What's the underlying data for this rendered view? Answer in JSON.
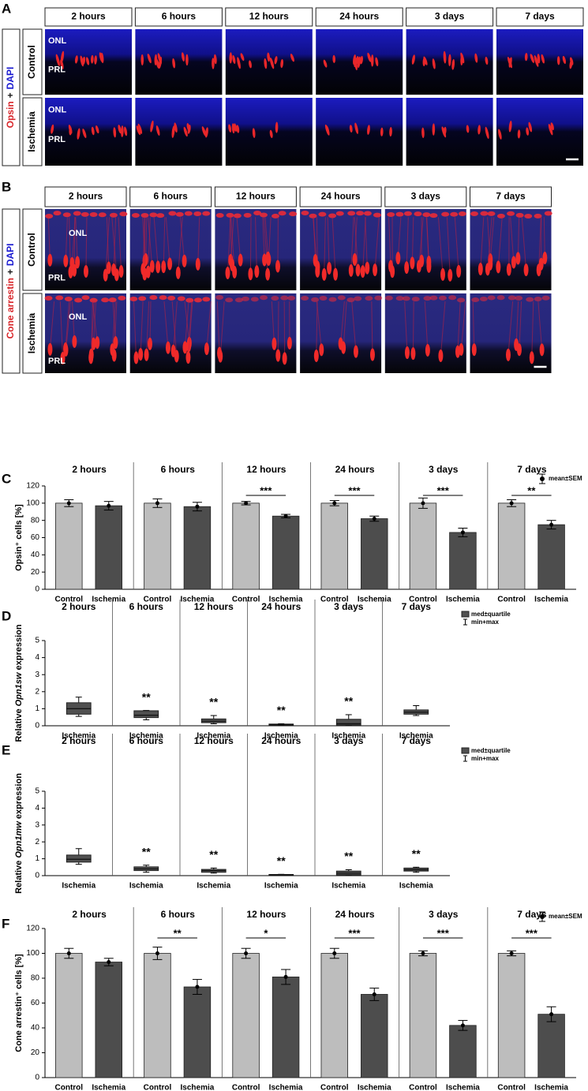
{
  "panels": {
    "a": {
      "label": "A",
      "stain": [
        "Opsin",
        "+",
        "DAPI"
      ],
      "columns": [
        "2 hours",
        "6 hours",
        "12 hours",
        "24 hours",
        "3 days",
        "7 days"
      ],
      "rows": [
        "Control",
        "Ischemia"
      ],
      "layers": [
        "ONL",
        "PRL"
      ]
    },
    "b": {
      "label": "B",
      "stain": [
        "Cone arrestin",
        "+",
        "DAPI"
      ],
      "columns": [
        "2 hours",
        "6 hours",
        "12 hours",
        "24 hours",
        "3 days",
        "7 days"
      ],
      "rows": [
        "Control",
        "Ischemia"
      ],
      "layers": [
        "ONL",
        "PRL"
      ]
    }
  },
  "chart_data": [
    {
      "type": "bar",
      "panel_label": "C",
      "ylabel": "Opsin⁺ cells [%]",
      "groups": [
        "2 hours",
        "6 hours",
        "12 hours",
        "24 hours",
        "3 days",
        "7 days"
      ],
      "series": [
        {
          "name": "Control",
          "color": "#bdbdbd",
          "values": [
            100,
            100,
            100,
            100,
            100,
            100
          ],
          "errors": [
            4,
            5,
            2,
            3,
            6,
            4
          ]
        },
        {
          "name": "Ischemia",
          "color": "#4d4d4d",
          "values": [
            97,
            96,
            85,
            82,
            66,
            75
          ],
          "errors": [
            5,
            5,
            2,
            3,
            5,
            5
          ]
        }
      ],
      "significance": [
        null,
        null,
        "***",
        "***",
        "***",
        "**"
      ],
      "legend": "mean±SEM",
      "ylim": [
        0,
        120
      ],
      "yticks": [
        0,
        20,
        40,
        60,
        80,
        100,
        120
      ]
    },
    {
      "type": "box",
      "panel_label": "D",
      "ylabel": [
        "Relative ",
        "Opn1sw",
        " expression"
      ],
      "groups": [
        "2 hours",
        "6 hours",
        "12 hours",
        "24 hours",
        "3 days",
        "7 days"
      ],
      "series": [
        {
          "name": "Ischemia",
          "color": "#505050",
          "median": [
            1.0,
            0.62,
            0.27,
            0.07,
            0.12,
            0.8
          ],
          "q1": [
            0.68,
            0.48,
            0.18,
            0.05,
            0.05,
            0.68
          ],
          "q3": [
            1.35,
            0.88,
            0.4,
            0.1,
            0.38,
            0.93
          ],
          "min": [
            0.55,
            0.35,
            0.12,
            0.03,
            0.02,
            0.6
          ],
          "max": [
            1.68,
            0.9,
            0.6,
            0.12,
            0.65,
            1.18
          ]
        }
      ],
      "significance": [
        null,
        "**",
        "**",
        "**",
        "**",
        null
      ],
      "legend": [
        "med±quartile",
        "min+max"
      ],
      "ylim": [
        0,
        5
      ],
      "yticks": [
        0,
        1,
        2,
        3,
        4,
        5
      ]
    },
    {
      "type": "box",
      "panel_label": "E",
      "ylabel": [
        "Relative ",
        "Opn1mw",
        " expression"
      ],
      "groups": [
        "2 hours",
        "6 hours",
        "12 hours",
        "24 hours",
        "3 days",
        "7 days"
      ],
      "series": [
        {
          "name": "Ischemia",
          "color": "#505050",
          "median": [
            0.97,
            0.4,
            0.3,
            0.05,
            0.15,
            0.35
          ],
          "q1": [
            0.8,
            0.3,
            0.2,
            0.03,
            0.05,
            0.27
          ],
          "q3": [
            1.22,
            0.52,
            0.37,
            0.07,
            0.27,
            0.45
          ],
          "min": [
            0.67,
            0.2,
            0.15,
            0.02,
            0.02,
            0.2
          ],
          "max": [
            1.6,
            0.62,
            0.45,
            0.08,
            0.35,
            0.5
          ]
        }
      ],
      "significance": [
        null,
        "**",
        "**",
        "**",
        "**",
        "**"
      ],
      "legend": [
        "med±quartile",
        "min+max"
      ],
      "ylim": [
        0,
        5
      ],
      "yticks": [
        0,
        1,
        2,
        3,
        4,
        5
      ]
    },
    {
      "type": "bar",
      "panel_label": "F",
      "ylabel": "Cone arrestin⁺ cells [%]",
      "groups": [
        "2 hours",
        "6 hours",
        "12 hours",
        "24 hours",
        "3 days",
        "7 days"
      ],
      "series": [
        {
          "name": "Control",
          "color": "#bdbdbd",
          "values": [
            100,
            100,
            100,
            100,
            100,
            100
          ],
          "errors": [
            4,
            5,
            4,
            4,
            2,
            2
          ]
        },
        {
          "name": "Ischemia",
          "color": "#4d4d4d",
          "values": [
            93,
            73,
            81,
            67,
            42,
            51
          ],
          "errors": [
            3,
            6,
            6,
            5,
            4,
            6
          ]
        }
      ],
      "significance": [
        null,
        "**",
        "*",
        "***",
        "***",
        "***"
      ],
      "legend": "mean±SEM",
      "ylim": [
        0,
        120
      ],
      "yticks": [
        0,
        20,
        40,
        60,
        80,
        100,
        120
      ]
    }
  ]
}
